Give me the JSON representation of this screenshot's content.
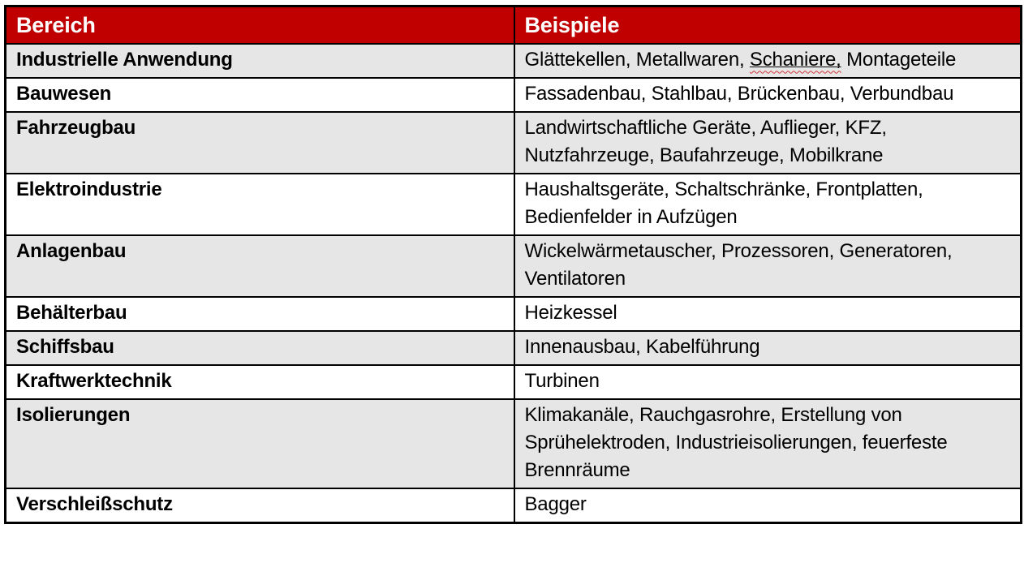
{
  "colors": {
    "header_bg": "#C00000",
    "header_text": "#FFFFFF",
    "row_alt_bg": "#E6E6E6",
    "row_bg": "#FFFFFF",
    "border": "#000000",
    "text": "#000000",
    "squiggle": "#D13438"
  },
  "table": {
    "headers": [
      {
        "label": "Bereich"
      },
      {
        "label": "Beispiele"
      }
    ],
    "rows": [
      {
        "bereich": "Industrielle Anwendung",
        "beispiele": [
          {
            "text": "Glättekellen, Metallwaren, "
          },
          {
            "text": "Schaniere,",
            "misspelled": true
          },
          {
            "text": " Montageteile"
          }
        ]
      },
      {
        "bereich": "Bauwesen",
        "beispiele": [
          {
            "text": "Fassadenbau, Stahlbau, Brückenbau, Verbundbau"
          }
        ]
      },
      {
        "bereich": "Fahrzeugbau",
        "beispiele": [
          {
            "text": "Landwirtschaftliche Geräte, Auflieger, KFZ, Nutzfahrzeuge, Baufahrzeuge, Mobilkrane"
          }
        ]
      },
      {
        "bereich": "Elektroindustrie",
        "beispiele": [
          {
            "text": "Haushaltsgeräte, Schaltschränke, Frontplatten, Bedienfelder in Aufzügen"
          }
        ]
      },
      {
        "bereich": "Anlagenbau",
        "beispiele": [
          {
            "text": "Wickelwärmetauscher, Prozessoren, Generatoren, Ventilatoren"
          }
        ]
      },
      {
        "bereich": "Behälterbau",
        "beispiele": [
          {
            "text": "Heizkessel"
          }
        ]
      },
      {
        "bereich": "Schiffsbau",
        "beispiele": [
          {
            "text": "Innenausbau, Kabelführung"
          }
        ]
      },
      {
        "bereich": "Kraftwerktechnik",
        "beispiele": [
          {
            "text": "Turbinen"
          }
        ]
      },
      {
        "bereich": "Isolierungen",
        "beispiele": [
          {
            "text": "Klimakanäle, Rauchgasrohre, Erstellung von Sprühelektroden, Industrieisolierungen, feuerfeste Brennräume"
          }
        ]
      },
      {
        "bereich": "Verschleißschutz",
        "beispiele": [
          {
            "text": "Bagger"
          }
        ]
      }
    ]
  }
}
